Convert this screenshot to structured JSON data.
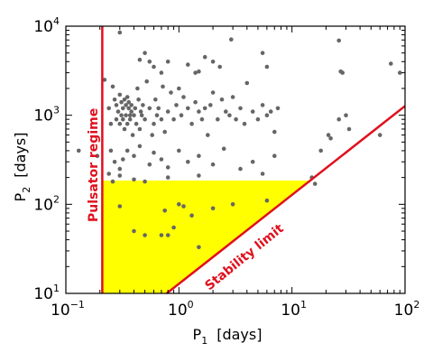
{
  "chart_data": {
    "type": "scatter",
    "x_scale": "log",
    "y_scale": "log",
    "xlim": [
      0.1,
      100
    ],
    "ylim": [
      10,
      10000
    ],
    "x_ticks": [
      {
        "value": 0.1,
        "base": "10",
        "exp": "−1"
      },
      {
        "value": 1,
        "base": "10",
        "exp": "0"
      },
      {
        "value": 10,
        "base": "10",
        "exp": "1"
      },
      {
        "value": 100,
        "base": "10",
        "exp": "2"
      }
    ],
    "y_ticks": [
      {
        "value": 10,
        "base": "10",
        "exp": "1"
      },
      {
        "value": 100,
        "base": "10",
        "exp": "2"
      },
      {
        "value": 1000,
        "base": "10",
        "exp": "3"
      },
      {
        "value": 10000,
        "base": "10",
        "exp": "4"
      }
    ],
    "xlabel": {
      "main": "P",
      "sub": "1",
      "unit": "[days]"
    },
    "ylabel": {
      "main": "P",
      "sub": "2",
      "unit": "[days]"
    },
    "grid": false,
    "colors": {
      "points": "#666666",
      "lines": "#e0101e",
      "region": "#ffff00"
    },
    "pulsator_limit_x": 0.21,
    "stability_line": {
      "x1": 0.78,
      "y1": 10,
      "x2": 100,
      "y2": 1270
    },
    "region": {
      "x_min": 0.21,
      "y_max": 185
    },
    "annotations": {
      "pulsator": "Pulsator regime",
      "stability": "Stability limit"
    },
    "points": [
      [
        0.13,
        400
      ],
      [
        0.19,
        350
      ],
      [
        0.22,
        2500
      ],
      [
        0.24,
        1200
      ],
      [
        0.25,
        800
      ],
      [
        0.26,
        2100
      ],
      [
        0.27,
        1500
      ],
      [
        0.28,
        900
      ],
      [
        0.28,
        1300
      ],
      [
        0.29,
        1100
      ],
      [
        0.3,
        1700
      ],
      [
        0.3,
        800
      ],
      [
        0.31,
        1400
      ],
      [
        0.31,
        1000
      ],
      [
        0.32,
        900
      ],
      [
        0.32,
        1200
      ],
      [
        0.33,
        1500
      ],
      [
        0.33,
        700
      ],
      [
        0.34,
        1300
      ],
      [
        0.34,
        1000
      ],
      [
        0.35,
        1600
      ],
      [
        0.35,
        800
      ],
      [
        0.36,
        1200
      ],
      [
        0.36,
        1400
      ],
      [
        0.37,
        1000
      ],
      [
        0.37,
        900
      ],
      [
        0.38,
        1100
      ],
      [
        0.38,
        1300
      ],
      [
        0.39,
        600
      ],
      [
        0.4,
        1000
      ],
      [
        0.41,
        1200
      ],
      [
        0.42,
        800
      ],
      [
        0.43,
        2000
      ],
      [
        0.44,
        1500
      ],
      [
        0.45,
        700
      ],
      [
        0.46,
        1100
      ],
      [
        0.47,
        1000
      ],
      [
        0.48,
        1300
      ],
      [
        0.5,
        900
      ],
      [
        0.52,
        2400
      ],
      [
        0.55,
        1200
      ],
      [
        0.58,
        600
      ],
      [
        0.6,
        800
      ],
      [
        0.62,
        1500
      ],
      [
        0.64,
        1000
      ],
      [
        0.66,
        1200
      ],
      [
        0.7,
        900
      ],
      [
        0.72,
        2100
      ],
      [
        0.75,
        650
      ],
      [
        0.8,
        1100
      ],
      [
        0.85,
        1800
      ],
      [
        0.9,
        900
      ],
      [
        0.95,
        1300
      ],
      [
        1.0,
        2000
      ],
      [
        1.05,
        1000
      ],
      [
        1.1,
        1600
      ],
      [
        1.2,
        1200
      ],
      [
        1.3,
        800
      ],
      [
        1.4,
        1400
      ],
      [
        1.5,
        1100
      ],
      [
        1.6,
        900
      ],
      [
        1.7,
        1200
      ],
      [
        1.8,
        600
      ],
      [
        1.9,
        1300
      ],
      [
        2.0,
        1800
      ],
      [
        2.2,
        900
      ],
      [
        2.4,
        1500
      ],
      [
        2.6,
        1100
      ],
      [
        2.8,
        1000
      ],
      [
        3.0,
        1600
      ],
      [
        3.2,
        900
      ],
      [
        3.5,
        1200
      ],
      [
        3.8,
        800
      ],
      [
        4.0,
        2300
      ],
      [
        4.5,
        1100
      ],
      [
        5.0,
        900
      ],
      [
        5.5,
        1300
      ],
      [
        6.0,
        1000
      ],
      [
        6.5,
        1100
      ],
      [
        7.0,
        650
      ],
      [
        7.5,
        1200
      ],
      [
        0.3,
        8500
      ],
      [
        0.45,
        4200
      ],
      [
        0.5,
        5000
      ],
      [
        0.55,
        4000
      ],
      [
        0.6,
        3500
      ],
      [
        0.7,
        3000
      ],
      [
        0.8,
        4000
      ],
      [
        1.2,
        3700
      ],
      [
        1.4,
        3000
      ],
      [
        1.5,
        3100
      ],
      [
        1.7,
        4500
      ],
      [
        2.0,
        4000
      ],
      [
        2.3,
        3500
      ],
      [
        2.9,
        7100
      ],
      [
        5.5,
        5000
      ],
      [
        6.0,
        3500
      ],
      [
        26,
        6900
      ],
      [
        27,
        3100
      ],
      [
        28,
        3000
      ],
      [
        75,
        3800
      ],
      [
        90,
        3000
      ],
      [
        0.25,
        400
      ],
      [
        0.27,
        300
      ],
      [
        0.3,
        250
      ],
      [
        0.32,
        320
      ],
      [
        0.35,
        400
      ],
      [
        0.4,
        350
      ],
      [
        0.45,
        450
      ],
      [
        0.55,
        280
      ],
      [
        0.6,
        380
      ],
      [
        0.7,
        320
      ],
      [
        0.8,
        260
      ],
      [
        1.0,
        400
      ],
      [
        1.2,
        300
      ],
      [
        1.5,
        350
      ],
      [
        2.0,
        280
      ],
      [
        2.5,
        420
      ],
      [
        3.5,
        250
      ],
      [
        4.5,
        300
      ],
      [
        5.5,
        220
      ],
      [
        7.0,
        350
      ],
      [
        0.24,
        220
      ],
      [
        0.26,
        180
      ],
      [
        0.3,
        210
      ],
      [
        0.4,
        190
      ],
      [
        0.5,
        180
      ],
      [
        0.8,
        200
      ],
      [
        1.5,
        210
      ],
      [
        0.3,
        95
      ],
      [
        0.4,
        50
      ],
      [
        0.5,
        45
      ],
      [
        0.7,
        45
      ],
      [
        0.75,
        85
      ],
      [
        0.8,
        45
      ],
      [
        0.9,
        55
      ],
      [
        1.0,
        100
      ],
      [
        1.1,
        95
      ],
      [
        1.3,
        75
      ],
      [
        1.5,
        33
      ],
      [
        2.0,
        90
      ],
      [
        3.0,
        100
      ],
      [
        6.0,
        110
      ],
      [
        15,
        200
      ],
      [
        16,
        170
      ],
      [
        18,
        400
      ],
      [
        21,
        600
      ],
      [
        22,
        550
      ],
      [
        26,
        900
      ],
      [
        30,
        1000
      ],
      [
        32,
        700
      ],
      [
        60,
        600
      ]
    ]
  }
}
